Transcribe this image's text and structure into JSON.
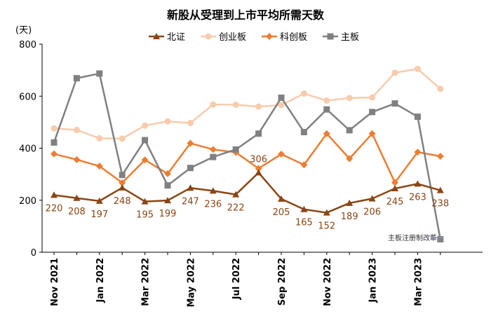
{
  "chart_data": {
    "type": "line",
    "title": "新股从受理到上市平均所需天数",
    "ylabel": "(天)",
    "xlabel": "",
    "ylim": [
      0,
      800
    ],
    "yticks": [
      0,
      200,
      400,
      600,
      800
    ],
    "grid": false,
    "legend_position": "top",
    "x": [
      "Nov 2021",
      "Dec 2021",
      "Jan 2022",
      "Feb 2022",
      "Mar 2022",
      "Apr 2022",
      "May 2022",
      "Jun 2022",
      "Jul 2022",
      "Aug 2022",
      "Sep 2022",
      "Oct 2022",
      "Nov 2022",
      "Dec 2022",
      "Jan 2023",
      "Feb 2023",
      "Mar 2023",
      "Apr 2023"
    ],
    "x_tick_labels": [
      "Nov 2021",
      "",
      "Jan 2022",
      "",
      "Mar 2022",
      "",
      "May 2022",
      "",
      "Jul 2022",
      "",
      "Sep 2022",
      "",
      "Nov 2022",
      "",
      "Jan 2023",
      "",
      "Mar 2023",
      ""
    ],
    "series": [
      {
        "name": "北证",
        "color": "#8B4513",
        "marker": "triangle",
        "values": [
          220,
          208,
          197,
          248,
          195,
          199,
          247,
          236,
          222,
          306,
          205,
          165,
          152,
          189,
          206,
          245,
          263,
          238
        ],
        "data_labels": [
          220,
          208,
          197,
          248,
          195,
          199,
          247,
          236,
          222,
          306,
          205,
          165,
          152,
          189,
          206,
          245,
          263,
          238
        ]
      },
      {
        "name": "创业板",
        "color": "#F8CBAD",
        "marker": "circle",
        "values": [
          476,
          470,
          438,
          437,
          487,
          503,
          497,
          568,
          567,
          560,
          566,
          610,
          583,
          593,
          595,
          690,
          705,
          628
        ]
      },
      {
        "name": "科创板",
        "color": "#ED7D31",
        "marker": "diamond",
        "values": [
          378,
          356,
          331,
          267,
          355,
          302,
          419,
          395,
          384,
          322,
          377,
          336,
          456,
          360,
          456,
          268,
          385,
          369
        ]
      },
      {
        "name": "主板",
        "color": "#808080",
        "marker": "square",
        "values": [
          422,
          669,
          687,
          297,
          431,
          257,
          324,
          366,
          395,
          456,
          594,
          462,
          549,
          469,
          539,
          572,
          521,
          50
        ]
      }
    ],
    "annotation": {
      "text": "主板注册制改革",
      "arrow": true
    }
  }
}
